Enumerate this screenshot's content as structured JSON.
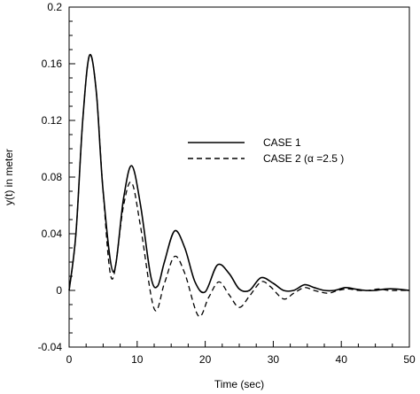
{
  "chart_data": {
    "type": "line",
    "title": "",
    "xlabel": "Time (sec)",
    "ylabel": "y(t) in meter",
    "xlim": [
      0,
      50
    ],
    "ylim": [
      -0.04,
      0.2
    ],
    "xticks": [
      0,
      10,
      20,
      30,
      40,
      50
    ],
    "xtick_labels": [
      "0",
      "10",
      "20",
      "30",
      "40",
      "50"
    ],
    "yticks": [
      -0.04,
      0,
      0.04,
      0.08,
      0.12,
      0.16,
      0.2
    ],
    "ytick_labels": [
      "-0.04",
      "0",
      "0.04",
      "0.08",
      "0.12",
      "0.16",
      "0.2"
    ],
    "grid": false,
    "legend_position": "center-right",
    "series": [
      {
        "name": "CASE 1",
        "style": "solid",
        "color": "#000000",
        "x": [
          0,
          1,
          2,
          3,
          4,
          5,
          6.5,
          8,
          9.2,
          10.5,
          12,
          13,
          14,
          15.5,
          17,
          18.5,
          20,
          21.8,
          23.5,
          25,
          26.5,
          28.2,
          30,
          31.5,
          33,
          34.6,
          36,
          37.5,
          39,
          40.6,
          42,
          43.5,
          45,
          46.5,
          48,
          50
        ],
        "y": [
          0,
          0.04,
          0.12,
          0.166,
          0.14,
          0.07,
          0.013,
          0.065,
          0.088,
          0.06,
          0.01,
          0.003,
          0.02,
          0.042,
          0.03,
          0.006,
          -0.001,
          0.018,
          0.012,
          0.001,
          0.0,
          0.009,
          0.005,
          0.0,
          0.0,
          0.004,
          0.002,
          0.0,
          0.0,
          0.002,
          0.001,
          0.0,
          0.0,
          0.001,
          0.001,
          0.0
        ]
      },
      {
        "name": "CASE 2 (α =2.5 )",
        "style": "dashed",
        "color": "#000000",
        "x": [
          0,
          1,
          2,
          3,
          4,
          5,
          6.3,
          8,
          9.2,
          10.5,
          12.5,
          14,
          15.5,
          17,
          19,
          20.5,
          22,
          23.5,
          25,
          26.5,
          28.2,
          29.5,
          31.5,
          33,
          34.6,
          36,
          38,
          39.5,
          41,
          42.5,
          44,
          45.5,
          47,
          48.5,
          50
        ],
        "y": [
          0,
          0.04,
          0.12,
          0.166,
          0.14,
          0.07,
          0.008,
          0.06,
          0.076,
          0.045,
          -0.013,
          0.005,
          0.024,
          0.012,
          -0.018,
          -0.005,
          0.006,
          -0.003,
          -0.012,
          -0.004,
          0.006,
          0.003,
          -0.006,
          -0.002,
          0.002,
          0.0,
          -0.002,
          0.0,
          0.001,
          0.0,
          0.0,
          0.001,
          0.0,
          0.0,
          0.0
        ]
      }
    ]
  }
}
